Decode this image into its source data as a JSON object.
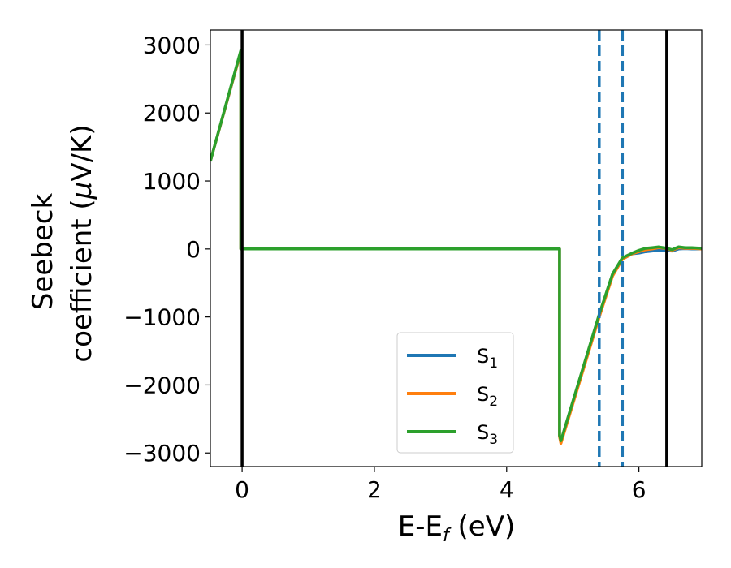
{
  "chart_data": {
    "type": "line",
    "title": "",
    "xlabel": "E-E",
    "xlabel_sub": "f",
    "xlabel_unit": " (eV)",
    "ylabel_line1": "Seebeck",
    "ylabel_line2_prefix": "coefficient  (",
    "ylabel_mu": "μ",
    "ylabel_line2_suffix": "V/K)",
    "xlim": [
      -0.48,
      6.95
    ],
    "ylim": [
      -3200,
      3220
    ],
    "x_ticks": [
      0,
      2,
      4,
      6
    ],
    "x_tick_labels": [
      "0",
      "2",
      "4",
      "6"
    ],
    "y_ticks": [
      3000,
      2000,
      1000,
      0,
      -1000,
      -2000,
      -3000
    ],
    "y_tick_labels": [
      "3000",
      "2000",
      "1000",
      "0",
      "−1000",
      "−2000",
      "−3000"
    ],
    "vlines_solid": [
      0.0,
      6.42
    ],
    "vlines_dashed": [
      5.4,
      5.75
    ],
    "legend_position": "lower-center",
    "series": [
      {
        "name": "S",
        "sub": "1",
        "color": "#1f77b4",
        "x": [
          -0.48,
          -0.02,
          -0.02,
          4.8,
          4.8,
          4.82,
          5.4,
          5.6,
          5.75,
          5.9,
          6.0,
          6.1,
          6.2,
          6.3,
          6.4,
          6.5,
          6.6,
          6.7,
          6.8,
          6.95
        ],
        "y": [
          1290,
          2900,
          0,
          0,
          -2750,
          -2840,
          -990,
          -390,
          -150,
          -70,
          -60,
          -40,
          -30,
          -20,
          -25,
          -30,
          0,
          5,
          0,
          0
        ]
      },
      {
        "name": "S",
        "sub": "2",
        "color": "#ff7f0e",
        "x": [
          -0.48,
          -0.02,
          -0.02,
          4.8,
          4.8,
          4.82,
          5.4,
          5.6,
          5.75,
          5.9,
          6.0,
          6.1,
          6.2,
          6.3,
          6.4,
          6.5,
          6.6,
          6.7,
          6.8,
          6.95
        ],
        "y": [
          1290,
          2900,
          0,
          0,
          -2760,
          -2860,
          -1000,
          -400,
          -150,
          -70,
          -40,
          -10,
          0,
          20,
          10,
          -20,
          20,
          10,
          10,
          0
        ]
      },
      {
        "name": "S",
        "sub": "3",
        "color": "#2ca02c",
        "x": [
          -0.48,
          -0.02,
          -0.02,
          4.8,
          4.8,
          4.82,
          5.4,
          5.6,
          5.75,
          5.9,
          6.0,
          6.1,
          6.2,
          6.3,
          6.4,
          6.5,
          6.6,
          6.7,
          6.8,
          6.95
        ],
        "y": [
          1290,
          2920,
          0,
          0,
          -2740,
          -2820,
          -960,
          -370,
          -130,
          -60,
          -20,
          10,
          20,
          30,
          15,
          -10,
          30,
          20,
          20,
          10
        ]
      }
    ]
  }
}
